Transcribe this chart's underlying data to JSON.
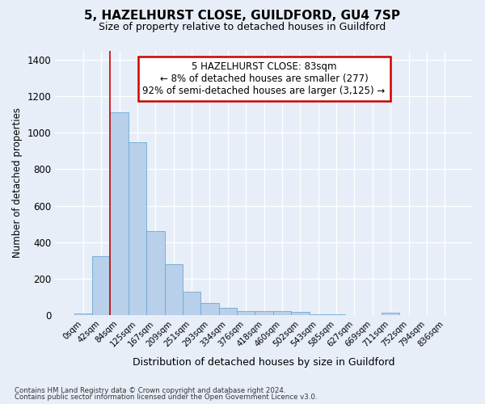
{
  "title1": "5, HAZELHURST CLOSE, GUILDFORD, GU4 7SP",
  "title2": "Size of property relative to detached houses in Guildford",
  "xlabel": "Distribution of detached houses by size in Guildford",
  "ylabel": "Number of detached properties",
  "footnote1": "Contains HM Land Registry data © Crown copyright and database right 2024.",
  "footnote2": "Contains public sector information licensed under the Open Government Licence v3.0.",
  "annotation_line1": "5 HAZELHURST CLOSE: 83sqm",
  "annotation_line2": "← 8% of detached houses are smaller (277)",
  "annotation_line3": "92% of semi-detached houses are larger (3,125) →",
  "bar_labels": [
    "0sqm",
    "42sqm",
    "84sqm",
    "125sqm",
    "167sqm",
    "209sqm",
    "251sqm",
    "293sqm",
    "334sqm",
    "376sqm",
    "418sqm",
    "460sqm",
    "502sqm",
    "543sqm",
    "585sqm",
    "627sqm",
    "669sqm",
    "711sqm",
    "752sqm",
    "794sqm",
    "836sqm"
  ],
  "bar_values": [
    10,
    325,
    1110,
    950,
    462,
    280,
    130,
    70,
    40,
    25,
    25,
    25,
    18,
    8,
    5,
    0,
    0,
    15,
    0,
    0,
    0
  ],
  "bar_color": "#b8d0ea",
  "bar_edge_color": "#6aaad4",
  "vline_color": "#cc0000",
  "box_color": "#cc0000",
  "ylim": [
    0,
    1450
  ],
  "yticks": [
    0,
    200,
    400,
    600,
    800,
    1000,
    1200,
    1400
  ],
  "bg_color": "#e8eef8",
  "plot_bg_color": "#e8eef8"
}
